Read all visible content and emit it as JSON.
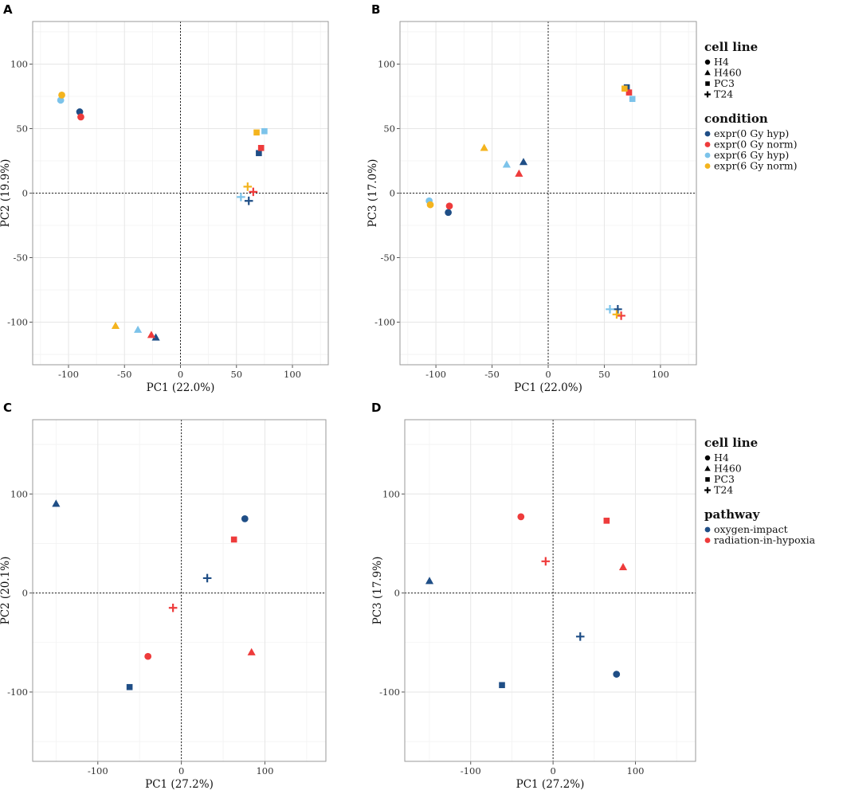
{
  "colors": {
    "expr(0 Gy hyp)": "#1f4e86",
    "expr(0 Gy norm)": "#ee3b3b",
    "expr(6 Gy hyp)": "#7cc3ea",
    "expr(6 Gy norm)": "#f4b41e",
    "oxygen-impact": "#1f4e86",
    "radiation-in-hypoxia": "#ee3b3b"
  },
  "legends": [
    {
      "id": "top",
      "groups": [
        {
          "title": "cell line",
          "kind": "shape",
          "items": [
            {
              "label": "H4",
              "shape": "circle"
            },
            {
              "label": "H460",
              "shape": "triangle"
            },
            {
              "label": "PC3",
              "shape": "square"
            },
            {
              "label": "T24",
              "shape": "plus"
            }
          ]
        },
        {
          "title": "condition",
          "kind": "color",
          "items": [
            {
              "label": "expr(0 Gy hyp)"
            },
            {
              "label": "expr(0 Gy norm)"
            },
            {
              "label": "expr(6 Gy hyp)"
            },
            {
              "label": "expr(6 Gy norm)"
            }
          ]
        }
      ]
    },
    {
      "id": "bottom",
      "groups": [
        {
          "title": "cell line",
          "kind": "shape",
          "items": [
            {
              "label": "H4",
              "shape": "circle"
            },
            {
              "label": "H460",
              "shape": "triangle"
            },
            {
              "label": "PC3",
              "shape": "square"
            },
            {
              "label": "T24",
              "shape": "plus"
            }
          ]
        },
        {
          "title": "pathway",
          "kind": "color",
          "items": [
            {
              "label": "oxygen-impact"
            },
            {
              "label": "radiation-in-hypoxia"
            }
          ]
        }
      ]
    }
  ],
  "chart_data": [
    {
      "panel": "A",
      "type": "scatter",
      "xlabel": "PC1 (22.0%)",
      "ylabel": "PC2 (19.9%)",
      "xlim": [
        -132,
        132
      ],
      "ylim": [
        -133,
        133
      ],
      "xticks": [
        -100,
        -50,
        0,
        50,
        100
      ],
      "yticks": [
        -100,
        -50,
        0,
        50,
        100
      ],
      "points": [
        {
          "x": -90,
          "y": 63,
          "shape": "circle",
          "group": "expr(0 Gy hyp)"
        },
        {
          "x": -89,
          "y": 59,
          "shape": "circle",
          "group": "expr(0 Gy norm)"
        },
        {
          "x": -107,
          "y": 72,
          "shape": "circle",
          "group": "expr(6 Gy hyp)"
        },
        {
          "x": -106,
          "y": 76,
          "shape": "circle",
          "group": "expr(6 Gy norm)"
        },
        {
          "x": -22,
          "y": -112,
          "shape": "triangle",
          "group": "expr(0 Gy hyp)"
        },
        {
          "x": -26,
          "y": -110,
          "shape": "triangle",
          "group": "expr(0 Gy norm)"
        },
        {
          "x": -38,
          "y": -106,
          "shape": "triangle",
          "group": "expr(6 Gy hyp)"
        },
        {
          "x": -58,
          "y": -103,
          "shape": "triangle",
          "group": "expr(6 Gy norm)"
        },
        {
          "x": 70,
          "y": 31,
          "shape": "square",
          "group": "expr(0 Gy hyp)"
        },
        {
          "x": 72,
          "y": 35,
          "shape": "square",
          "group": "expr(0 Gy norm)"
        },
        {
          "x": 75,
          "y": 48,
          "shape": "square",
          "group": "expr(6 Gy hyp)"
        },
        {
          "x": 68,
          "y": 47,
          "shape": "square",
          "group": "expr(6 Gy norm)"
        },
        {
          "x": 61,
          "y": -6,
          "shape": "plus",
          "group": "expr(0 Gy hyp)"
        },
        {
          "x": 65,
          "y": 1,
          "shape": "plus",
          "group": "expr(0 Gy norm)"
        },
        {
          "x": 54,
          "y": -3,
          "shape": "plus",
          "group": "expr(6 Gy hyp)"
        },
        {
          "x": 60,
          "y": 5,
          "shape": "plus",
          "group": "expr(6 Gy norm)"
        }
      ]
    },
    {
      "panel": "B",
      "type": "scatter",
      "xlabel": "PC1 (22.0%)",
      "ylabel": "PC3 (17.0%)",
      "xlim": [
        -132,
        132
      ],
      "ylim": [
        -133,
        133
      ],
      "xticks": [
        -100,
        -50,
        0,
        50,
        100
      ],
      "yticks": [
        -100,
        -50,
        0,
        50,
        100
      ],
      "points": [
        {
          "x": -89,
          "y": -15,
          "shape": "circle",
          "group": "expr(0 Gy hyp)"
        },
        {
          "x": -88,
          "y": -10,
          "shape": "circle",
          "group": "expr(0 Gy norm)"
        },
        {
          "x": -106,
          "y": -6,
          "shape": "circle",
          "group": "expr(6 Gy hyp)"
        },
        {
          "x": -105,
          "y": -9,
          "shape": "circle",
          "group": "expr(6 Gy norm)"
        },
        {
          "x": -22,
          "y": 24,
          "shape": "triangle",
          "group": "expr(0 Gy hyp)"
        },
        {
          "x": -26,
          "y": 15,
          "shape": "triangle",
          "group": "expr(0 Gy norm)"
        },
        {
          "x": -37,
          "y": 22,
          "shape": "triangle",
          "group": "expr(6 Gy hyp)"
        },
        {
          "x": -57,
          "y": 35,
          "shape": "triangle",
          "group": "expr(6 Gy norm)"
        },
        {
          "x": 70,
          "y": 82,
          "shape": "square",
          "group": "expr(0 Gy hyp)"
        },
        {
          "x": 72,
          "y": 78,
          "shape": "square",
          "group": "expr(0 Gy norm)"
        },
        {
          "x": 75,
          "y": 73,
          "shape": "square",
          "group": "expr(6 Gy hyp)"
        },
        {
          "x": 68,
          "y": 81,
          "shape": "square",
          "group": "expr(6 Gy norm)"
        },
        {
          "x": 62,
          "y": -90,
          "shape": "plus",
          "group": "expr(0 Gy hyp)"
        },
        {
          "x": 65,
          "y": -95,
          "shape": "plus",
          "group": "expr(0 Gy norm)"
        },
        {
          "x": 55,
          "y": -90,
          "shape": "plus",
          "group": "expr(6 Gy hyp)"
        },
        {
          "x": 61,
          "y": -94,
          "shape": "plus",
          "group": "expr(6 Gy norm)"
        }
      ]
    },
    {
      "panel": "C",
      "type": "scatter",
      "xlabel": "PC1 (27.2%)",
      "ylabel": "PC2 (20.1%)",
      "xlim": [
        -178,
        173
      ],
      "ylim": [
        -170,
        175
      ],
      "xticks": [
        -100,
        0,
        100
      ],
      "yticks": [
        -100,
        0,
        100
      ],
      "points": [
        {
          "x": 76,
          "y": 75,
          "shape": "circle",
          "group": "oxygen-impact"
        },
        {
          "x": -40,
          "y": -64,
          "shape": "circle",
          "group": "radiation-in-hypoxia"
        },
        {
          "x": -150,
          "y": 90,
          "shape": "triangle",
          "group": "oxygen-impact"
        },
        {
          "x": 84,
          "y": -60,
          "shape": "triangle",
          "group": "radiation-in-hypoxia"
        },
        {
          "x": -62,
          "y": -95,
          "shape": "square",
          "group": "oxygen-impact"
        },
        {
          "x": 63,
          "y": 54,
          "shape": "square",
          "group": "radiation-in-hypoxia"
        },
        {
          "x": 31,
          "y": 15,
          "shape": "plus",
          "group": "oxygen-impact"
        },
        {
          "x": -10,
          "y": -15,
          "shape": "plus",
          "group": "radiation-in-hypoxia"
        }
      ]
    },
    {
      "panel": "D",
      "type": "scatter",
      "xlabel": "PC1 (27.2%)",
      "ylabel": "PC3 (17.9%)",
      "xlim": [
        -180,
        173
      ],
      "ylim": [
        -170,
        175
      ],
      "xticks": [
        -100,
        0,
        100
      ],
      "yticks": [
        -100,
        0,
        100
      ],
      "points": [
        {
          "x": 77,
          "y": -82,
          "shape": "circle",
          "group": "oxygen-impact"
        },
        {
          "x": -39,
          "y": 77,
          "shape": "circle",
          "group": "radiation-in-hypoxia"
        },
        {
          "x": -150,
          "y": 12,
          "shape": "triangle",
          "group": "oxygen-impact"
        },
        {
          "x": 85,
          "y": 26,
          "shape": "triangle",
          "group": "radiation-in-hypoxia"
        },
        {
          "x": -62,
          "y": -93,
          "shape": "square",
          "group": "oxygen-impact"
        },
        {
          "x": 65,
          "y": 73,
          "shape": "square",
          "group": "radiation-in-hypoxia"
        },
        {
          "x": 33,
          "y": -44,
          "shape": "plus",
          "group": "oxygen-impact"
        },
        {
          "x": -9,
          "y": 32,
          "shape": "plus",
          "group": "radiation-in-hypoxia"
        }
      ]
    }
  ]
}
